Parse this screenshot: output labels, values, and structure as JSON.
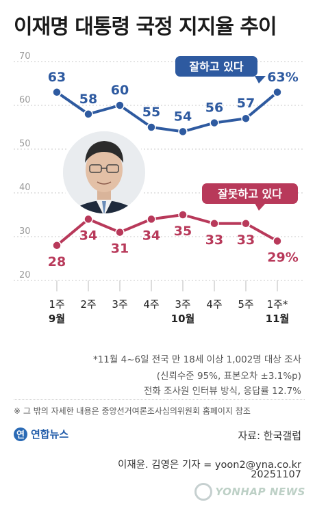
{
  "title": "이재명 대통령 국정 지지율 추이",
  "chart_data": {
    "type": "line",
    "ylim": [
      20,
      70
    ],
    "yticks": [
      "70",
      "60",
      "50",
      "40",
      "30",
      "20"
    ],
    "categories": [
      "1주\n9월",
      "2주",
      "3주",
      "4주",
      "3주\n10월",
      "4주",
      "5주",
      "1주*\n11월"
    ],
    "series": [
      {
        "name": "잘하고 있다",
        "color": "#2e5aa0",
        "values": [
          63,
          58,
          60,
          55,
          54,
          56,
          57,
          63
        ],
        "labels": [
          "63",
          "58",
          "60",
          "55",
          "54",
          "56",
          "57",
          "63%"
        ]
      },
      {
        "name": "잘못하고 있다",
        "color": "#b8395a",
        "values": [
          28,
          34,
          31,
          34,
          35,
          33,
          33,
          29
        ],
        "labels": [
          "28",
          "34",
          "31",
          "34",
          "35",
          "33",
          "33",
          "29%"
        ]
      }
    ]
  },
  "notes": {
    "line1": "*11월 4~6일 전국 만 18세 이상 1,002명 대상 조사",
    "line2": "(신뢰수준 95%, 표본오차 ±3.1%p)",
    "line3": "전화 조사원 인터뷰 방식, 응답률 12.7%"
  },
  "disclaimer": "※ 그 밖의 자세한 내용은 중앙선거여론조사심의위원회 홈페이지 참조",
  "logo": {
    "mark": "연",
    "text": "연합뉴스"
  },
  "source": "자료: 한국갤럽",
  "credit": "이재윤. 김영은 기자 = yoon2@yna.co.kr",
  "date": "20251107",
  "watermark": "YONHAP NEWS"
}
